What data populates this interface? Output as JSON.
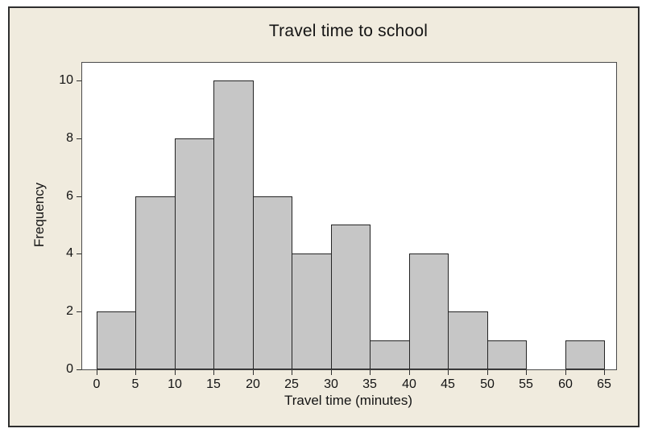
{
  "chart_data": {
    "type": "bar",
    "subtype": "histogram",
    "title": "Travel time to school",
    "xlabel": "Travel time (minutes)",
    "ylabel": "Frequency",
    "bin_width": 5,
    "bin_edges": [
      0,
      5,
      10,
      15,
      20,
      25,
      30,
      35,
      40,
      45,
      50,
      55,
      60,
      65
    ],
    "values": [
      2,
      6,
      8,
      10,
      6,
      4,
      5,
      1,
      4,
      2,
      1,
      0,
      1
    ],
    "x_ticks": [
      0,
      5,
      10,
      15,
      20,
      25,
      30,
      35,
      40,
      45,
      50,
      55,
      60,
      65
    ],
    "y_ticks": [
      0,
      2,
      4,
      6,
      8,
      10
    ],
    "xlim": [
      -1.9,
      66.6
    ],
    "ylim": [
      0,
      10.6
    ],
    "grid": false,
    "legend": false
  },
  "colors": {
    "canvas_background": "#f0ebde",
    "plot_background": "#ffffff",
    "bar_fill": "#c6c6c6",
    "bar_border": "#242424",
    "frame_border": "#2e2e2e",
    "plot_border": "#4a4a4a",
    "text": "#141414"
  }
}
